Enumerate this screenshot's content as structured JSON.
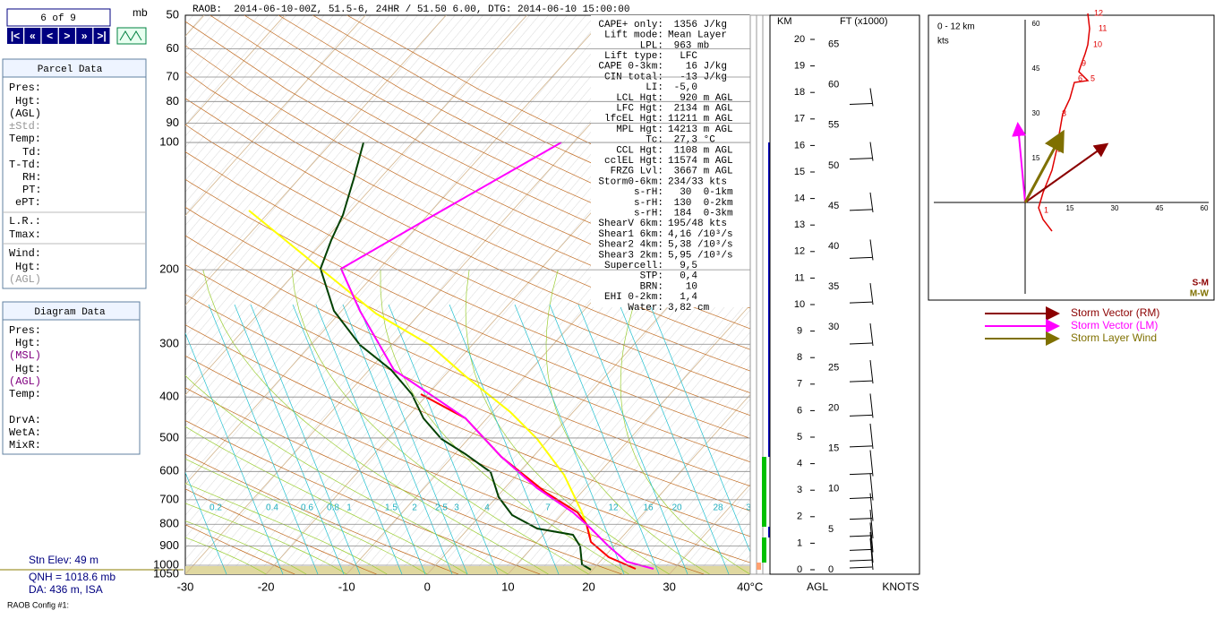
{
  "header": "RAOB:  2014-06-10-00Z, 51.5-6, 24HR / 51.50 6.00, DTG: 2014-06-10 15:00:00",
  "nav": {
    "counter": "6 of 9",
    "unit": "mb",
    "buttons": [
      "|<",
      "«",
      "<",
      ">",
      "»",
      ">|"
    ]
  },
  "parcel_panel": {
    "title": "Parcel Data",
    "labels": [
      "Pres:",
      "Hgt:",
      "(AGL)",
      "±Std:",
      "Temp:",
      "Td:",
      "T-Td:",
      "RH:",
      "PT:",
      "ePT:",
      "L.R.:",
      "Tmax:",
      "Wind:",
      "Hgt:",
      "(AGL)"
    ]
  },
  "diagram_panel": {
    "title": "Diagram Data",
    "labels": [
      "Pres:",
      "Hgt:",
      "(MSL)",
      "Hgt:",
      "(AGL)",
      "Temp:",
      "DrvA:",
      "WetA:",
      "MixR:"
    ]
  },
  "station": [
    "Stn Elev: 49 m",
    "QNH = 1018.6 mb",
    "DA: 436 m, ISA"
  ],
  "footer": "RAOB Config #1:",
  "skewt": {
    "pressure_labels": [
      "50",
      "60",
      "70",
      "80",
      "90",
      "100",
      "200",
      "300",
      "400",
      "500",
      "600",
      "700",
      "800",
      "900",
      "1000",
      "1050"
    ],
    "temp_labels": [
      "-30",
      "-20",
      "-10",
      "0",
      "10",
      "20",
      "30",
      "40°C"
    ],
    "mixing_labels": [
      "0.2",
      "0.4",
      "0.6",
      "0.8",
      "1",
      "1.5",
      "2",
      "2.5",
      "3",
      "4",
      "7",
      "12",
      "16",
      "20",
      "28",
      "3"
    ]
  },
  "stats": {
    "labels": [
      "CAPE+ only:",
      "Lift mode:",
      "LPL:",
      "Lift type:",
      "CAPE 0-3km:",
      "CIN total:",
      "LI:",
      "LCL Hgt:",
      "LFC Hgt:",
      "lfcEL Hgt:",
      "MPL Hgt:",
      "Tc:",
      "CCL Hgt:",
      "cclEL Hgt:",
      "FRZG Lvl:",
      "Storm0-6km:",
      "s-rH:",
      "s-rH:",
      "s-rH:",
      "ShearV 6km:",
      "Shear1 6km:",
      "Shear2 4km:",
      "Shear3 2km:",
      "Supercell:",
      "STP:",
      "BRN:",
      "EHI 0-2km:",
      "Water:"
    ],
    "values": [
      " 1356 J/kg",
      "Mean Layer",
      " 963 mb",
      "  LFC",
      "   16 J/kg",
      "  -13 J/kg",
      " -5,0",
      "  920 m AGL",
      " 2134 m AGL",
      "11211 m AGL",
      "14213 m AGL",
      " 27,3 °C",
      " 1108 m AGL",
      "11574 m AGL",
      " 3667 m AGL",
      "234/33 kts",
      "  30  0-1km",
      " 130  0-2km",
      " 184  0-3km",
      "195/48 kts",
      "4,16 /10³/s",
      "5,38 /10³/s",
      "5,95 /10³/s",
      "  9,5",
      "  0,4",
      "   10",
      "  1,4",
      "3,82 cm"
    ]
  },
  "height": {
    "km_title": "KM",
    "ft_title": "FT (x1000)",
    "agl": "AGL",
    "knots": "KNOTS",
    "km": [
      "0",
      "1",
      "2",
      "3",
      "4",
      "5",
      "6",
      "7",
      "8",
      "9",
      "10",
      "11",
      "12",
      "13",
      "14",
      "15",
      "16",
      "17",
      "18",
      "19",
      "20"
    ],
    "ft": [
      "0",
      "5",
      "10",
      "15",
      "20",
      "25",
      "30",
      "35",
      "40",
      "45",
      "50",
      "55",
      "60",
      "65"
    ]
  },
  "hodograph": {
    "range": "0 - 12 km",
    "unit": "kts",
    "y_ticks": [
      "60",
      "45",
      "30",
      "15"
    ],
    "x_ticks": [
      "15",
      "30",
      "45",
      "60"
    ],
    "height_labels": [
      "1",
      "2",
      "3",
      "5",
      "6",
      "9",
      "10",
      "11",
      "12"
    ],
    "sm": "S-M",
    "mw": "M-W",
    "legend": [
      "Storm Vector (RM)",
      "Storm Vector (LM)",
      "Storm Layer Wind"
    ]
  }
}
